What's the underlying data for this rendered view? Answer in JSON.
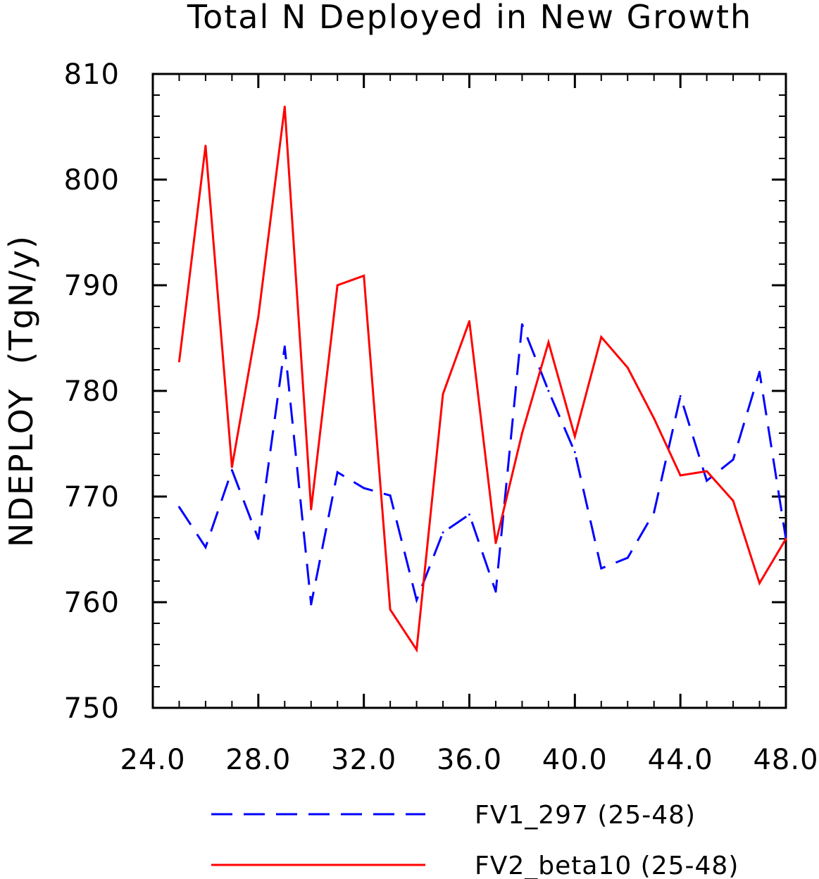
{
  "chart_data": {
    "type": "line",
    "title": "Total N Deployed in New Growth",
    "xlabel": "",
    "ylabel": "NDEPLOY  (TgN/y)",
    "xlim": [
      24,
      48
    ],
    "ylim": [
      750,
      810
    ],
    "x_ticks": [
      24,
      28,
      32,
      36,
      40,
      44,
      48
    ],
    "x_tick_labels": [
      "24.0",
      "28.0",
      "32.0",
      "36.0",
      "40.0",
      "44.0",
      "48.0"
    ],
    "y_ticks": [
      750,
      760,
      770,
      780,
      790,
      800,
      810
    ],
    "y_tick_labels": [
      "750",
      "760",
      "770",
      "780",
      "790",
      "800",
      "810"
    ],
    "grid": false,
    "legend_position": "bottom",
    "x": [
      25,
      26,
      27,
      28,
      29,
      30,
      31,
      32,
      33,
      34,
      35,
      36,
      37,
      38,
      39,
      40,
      41,
      42,
      43,
      44,
      45,
      46,
      47,
      48
    ],
    "series": [
      {
        "name": "FV1_297 (25-48)",
        "color": "#0000ff",
        "style": "dashed",
        "values": [
          769.0,
          765.2,
          772.5,
          766.0,
          784.2,
          759.8,
          772.3,
          770.8,
          770.1,
          760.2,
          766.6,
          768.3,
          761.0,
          786.3,
          780.0,
          774.2,
          763.2,
          764.2,
          768.5,
          779.5,
          771.5,
          773.5,
          781.8,
          766.0
        ]
      },
      {
        "name": "FV2_beta10 (25-48)",
        "color": "#ff0000",
        "style": "solid",
        "values": [
          782.8,
          803.2,
          772.8,
          787.0,
          806.9,
          768.8,
          790.0,
          790.9,
          759.3,
          755.5,
          779.7,
          786.6,
          765.6,
          776.0,
          784.6,
          775.7,
          785.1,
          782.2,
          777.4,
          772.0,
          772.4,
          769.6,
          761.8,
          766.0
        ]
      }
    ]
  }
}
